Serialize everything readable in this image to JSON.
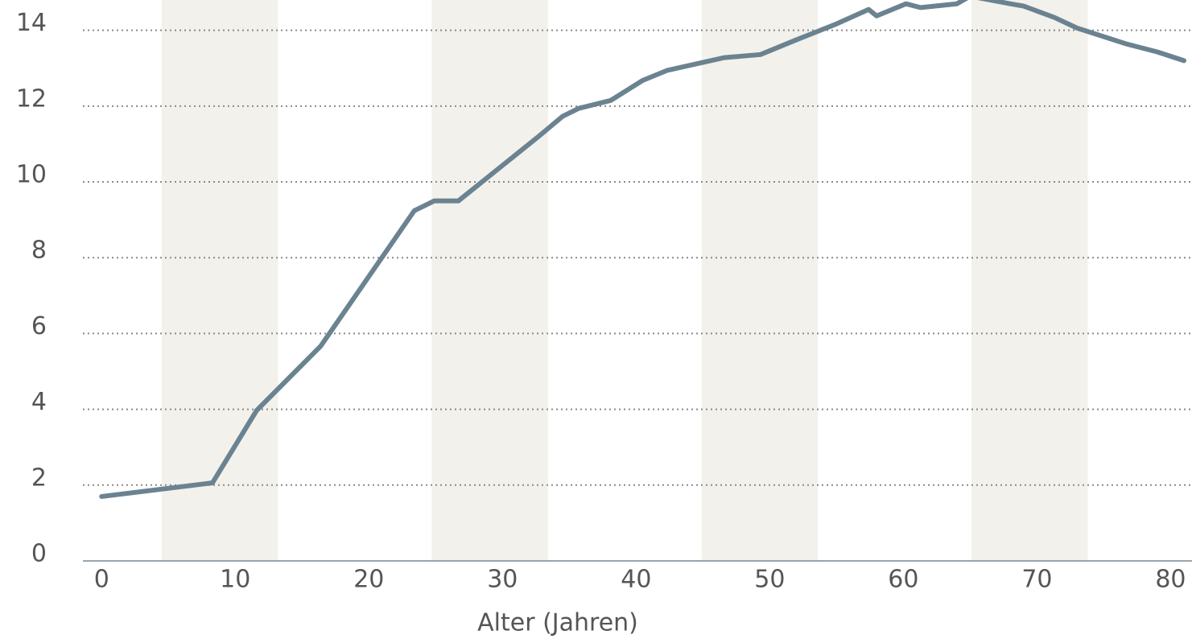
{
  "chart_data": {
    "type": "line",
    "x_label": "Alter (Jahren)",
    "x": [
      0,
      8.3,
      11.6,
      16.4,
      23.4,
      24.9,
      26.7,
      32.7,
      34.5,
      35.7,
      38.1,
      40.5,
      42.3,
      46.6,
      49.3,
      52,
      55,
      57.4,
      58,
      60.2,
      61.3,
      64,
      65,
      68,
      69,
      71.3,
      73,
      76.7,
      79,
      81
    ],
    "series": [
      {
        "color": "#6b8391",
        "values": [
          1.7,
          2.06,
          3.97,
          5.67,
          9.24,
          9.5,
          9.5,
          11.2,
          11.73,
          11.94,
          12.15,
          12.68,
          12.94,
          13.28,
          13.36,
          13.75,
          14.17,
          14.55,
          14.38,
          14.7,
          14.6,
          14.7,
          14.9,
          14.7,
          14.64,
          14.34,
          14.06,
          13.64,
          13.43,
          13.2
        ]
      }
    ],
    "bands": [
      [
        4.5,
        13.2
      ],
      [
        24.7,
        33.4
      ],
      [
        44.9,
        53.6
      ],
      [
        65.1,
        73.8
      ]
    ],
    "band_color": "#f3f1ec",
    "xlim": [
      -1.4,
      81.6
    ],
    "ylim": [
      0,
      14.8
    ],
    "xticks": [
      0,
      10,
      20,
      30,
      40,
      50,
      60,
      70,
      80
    ],
    "yticks": [
      0,
      2,
      4,
      6,
      8,
      10,
      12,
      14
    ],
    "grid": true
  }
}
